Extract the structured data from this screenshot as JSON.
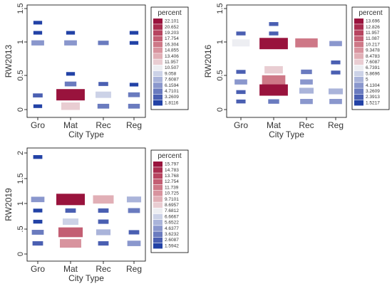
{
  "chart_data": [
    {
      "type": "heatmap",
      "xlabel": "City Type",
      "ylabel": "RW2013",
      "categories": [
        "Gro",
        "Mat",
        "Rec",
        "Reg"
      ],
      "ylim": [
        -0.1,
        1.5
      ],
      "yticks": [
        "0",
        "0.5",
        "1",
        "1.5"
      ],
      "grid": false,
      "legend": {
        "title": "percent",
        "placement": "right",
        "labels": [
          "22.101",
          "20.652",
          "19.203",
          "17.754",
          "16.304",
          "14.855",
          "13.406",
          "11.957",
          "10.507",
          "9.058",
          "7.6087",
          "6.1594",
          "4.7101",
          "3.2609",
          "1.8116"
        ],
        "colors": [
          "#99133d",
          "#a82c4e",
          "#b74560",
          "#c35e73",
          "#ce7887",
          "#d8939e",
          "#e1afb6",
          "#e9cdd2",
          "#edeef2",
          "#ccd2e7",
          "#aab4da",
          "#8a97cd",
          "#6a7bbf",
          "#4a5fb2",
          "#2242a6"
        ]
      },
      "tiles": [
        {
          "x": "Gro",
          "y": 1.29,
          "value": 2
        },
        {
          "x": "Gro",
          "y": 1.14,
          "value": 2
        },
        {
          "x": "Gro",
          "y": 0.99,
          "value": 6
        },
        {
          "x": "Gro",
          "y": 0.21,
          "value": 3
        },
        {
          "x": "Gro",
          "y": 0.05,
          "value": 2
        },
        {
          "x": "Mat",
          "y": 1.14,
          "value": 2
        },
        {
          "x": "Mat",
          "y": 0.99,
          "value": 6
        },
        {
          "x": "Mat",
          "y": 0.53,
          "value": 2
        },
        {
          "x": "Mat",
          "y": 0.38,
          "value": 5
        },
        {
          "x": "Mat",
          "y": 0.22,
          "value": 22
        },
        {
          "x": "Mat",
          "y": 0.05,
          "value": 12
        },
        {
          "x": "Rec",
          "y": 0.99,
          "value": 4
        },
        {
          "x": "Rec",
          "y": 0.38,
          "value": 3
        },
        {
          "x": "Rec",
          "y": 0.22,
          "value": 9
        },
        {
          "x": "Rec",
          "y": 0.05,
          "value": 5
        },
        {
          "x": "Reg",
          "y": 1.14,
          "value": 2
        },
        {
          "x": "Reg",
          "y": 0.99,
          "value": 2
        },
        {
          "x": "Reg",
          "y": 0.37,
          "value": 2
        },
        {
          "x": "Reg",
          "y": 0.22,
          "value": 5
        },
        {
          "x": "Reg",
          "y": 0.05,
          "value": 5
        }
      ]
    },
    {
      "type": "heatmap",
      "xlabel": "City Type",
      "ylabel": "RW2016",
      "categories": [
        "Gro",
        "Mat",
        "Rec",
        "Reg"
      ],
      "ylim": [
        -0.1,
        1.5
      ],
      "yticks": [
        "0",
        "0.5",
        "1",
        "1.5"
      ],
      "grid": false,
      "legend": {
        "title": "percent",
        "placement": "right",
        "labels": [
          "13.696",
          "12.826",
          "11.957",
          "11.087",
          "10.217",
          "9.3478",
          "8.4783",
          "7.6087",
          "6.7391",
          "5.8696",
          "5",
          "4.1304",
          "3.2609",
          "2.3913",
          "1.5217"
        ],
        "colors": [
          "#99133d",
          "#a82c4e",
          "#b74560",
          "#c35e73",
          "#ce7887",
          "#d8939e",
          "#e1afb6",
          "#e9cdd2",
          "#edeef2",
          "#ccd2e7",
          "#aab4da",
          "#8a97cd",
          "#6a7bbf",
          "#4a5fb2",
          "#2242a6"
        ]
      },
      "tiles": [
        {
          "x": "Gro",
          "y": 1.13,
          "value": 2
        },
        {
          "x": "Gro",
          "y": 0.99,
          "value": 7
        },
        {
          "x": "Gro",
          "y": 0.56,
          "value": 2
        },
        {
          "x": "Gro",
          "y": 0.41,
          "value": 4
        },
        {
          "x": "Gro",
          "y": 0.26,
          "value": 2
        },
        {
          "x": "Gro",
          "y": 0.12,
          "value": 2
        },
        {
          "x": "Mat",
          "y": 1.27,
          "value": 2
        },
        {
          "x": "Mat",
          "y": 1.13,
          "value": 2
        },
        {
          "x": "Mat",
          "y": 0.98,
          "value": 13.6
        },
        {
          "x": "Mat",
          "y": 0.59,
          "value": 7.5
        },
        {
          "x": "Mat",
          "y": 0.44,
          "value": 10.5
        },
        {
          "x": "Mat",
          "y": 0.29,
          "value": 13.6
        },
        {
          "x": "Mat",
          "y": 0.12,
          "value": 3
        },
        {
          "x": "Rec",
          "y": 0.99,
          "value": 10
        },
        {
          "x": "Rec",
          "y": 0.56,
          "value": 3
        },
        {
          "x": "Rec",
          "y": 0.41,
          "value": 4
        },
        {
          "x": "Rec",
          "y": 0.28,
          "value": 5
        },
        {
          "x": "Rec",
          "y": 0.12,
          "value": 4
        },
        {
          "x": "Reg",
          "y": 0.98,
          "value": 4
        },
        {
          "x": "Reg",
          "y": 0.7,
          "value": 2
        },
        {
          "x": "Reg",
          "y": 0.55,
          "value": 2
        },
        {
          "x": "Reg",
          "y": 0.27,
          "value": 5
        },
        {
          "x": "Reg",
          "y": 0.12,
          "value": 4
        }
      ]
    },
    {
      "type": "heatmap",
      "xlabel": "City Type",
      "ylabel": "RW2019",
      "categories": [
        "Gro",
        "Mat",
        "Rec",
        "Reg"
      ],
      "ylim": [
        -0.1,
        2.1
      ],
      "yticks": [
        "0",
        ".5",
        "1",
        "1.5",
        "2"
      ],
      "grid": false,
      "legend": {
        "title": "percent",
        "placement": "right",
        "labels": [
          "15.797",
          "14.783",
          "13.768",
          "12.754",
          "11.739",
          "10.725",
          "9.7101",
          "8.6957",
          "7.6812",
          "6.6667",
          "5.6522",
          "4.6377",
          "3.6232",
          "2.6087",
          "1.5942"
        ],
        "colors": [
          "#99133d",
          "#a82c4e",
          "#b74560",
          "#c35e73",
          "#ce7887",
          "#d8939e",
          "#e1afb6",
          "#e9cdd2",
          "#edeef2",
          "#ccd2e7",
          "#aab4da",
          "#8a97cd",
          "#6a7bbf",
          "#4a5fb2",
          "#2242a6"
        ]
      },
      "tiles": [
        {
          "x": "Gro",
          "y": 1.92,
          "value": 2
        },
        {
          "x": "Gro",
          "y": 1.08,
          "value": 5
        },
        {
          "x": "Gro",
          "y": 0.86,
          "value": 2
        },
        {
          "x": "Gro",
          "y": 0.64,
          "value": 2
        },
        {
          "x": "Gro",
          "y": 0.43,
          "value": 4
        },
        {
          "x": "Gro",
          "y": 0.21,
          "value": 3
        },
        {
          "x": "Mat",
          "y": 1.08,
          "value": 15.8
        },
        {
          "x": "Mat",
          "y": 0.86,
          "value": 3
        },
        {
          "x": "Mat",
          "y": 0.64,
          "value": 6.7
        },
        {
          "x": "Mat",
          "y": 0.43,
          "value": 12.8
        },
        {
          "x": "Mat",
          "y": 0.21,
          "value": 10.7
        },
        {
          "x": "Rec",
          "y": 1.08,
          "value": 10.2
        },
        {
          "x": "Rec",
          "y": 0.86,
          "value": 3
        },
        {
          "x": "Rec",
          "y": 0.64,
          "value": 3
        },
        {
          "x": "Rec",
          "y": 0.43,
          "value": 5.7
        },
        {
          "x": "Rec",
          "y": 0.21,
          "value": 3
        },
        {
          "x": "Reg",
          "y": 1.08,
          "value": 5.7
        },
        {
          "x": "Reg",
          "y": 0.86,
          "value": 4
        },
        {
          "x": "Reg",
          "y": 0.43,
          "value": 3
        },
        {
          "x": "Reg",
          "y": 0.21,
          "value": 5
        }
      ]
    }
  ]
}
